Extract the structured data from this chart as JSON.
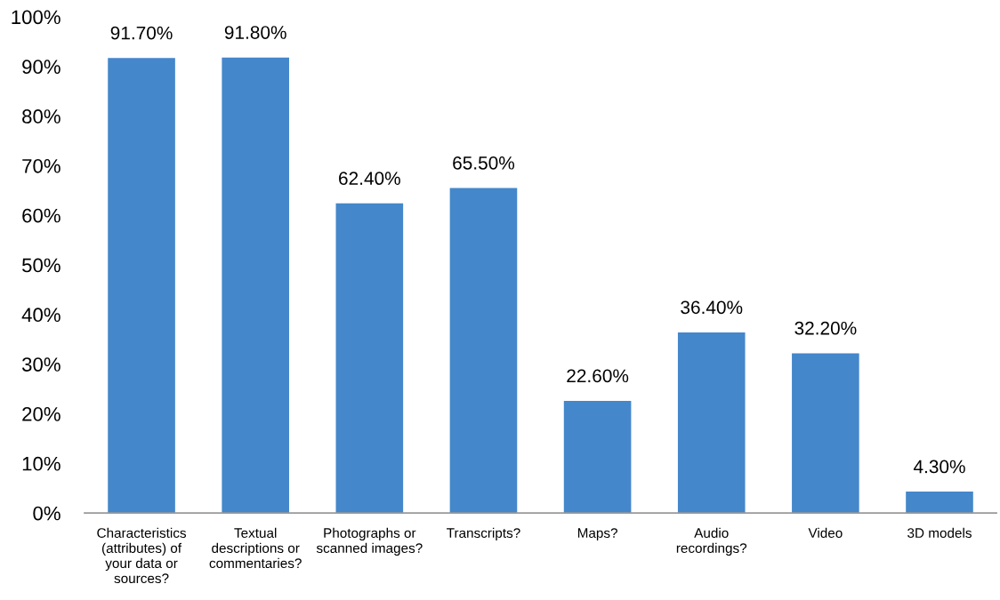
{
  "chart_data": {
    "type": "bar",
    "categories": [
      "Characteristics\n(attributes) of\nyour data or\nsources?",
      "Textual\ndescriptions or\ncommentaries?",
      "Photographs or\nscanned images?",
      "Transcripts?",
      "Maps?",
      "Audio\nrecordings?",
      "Video",
      "3D models"
    ],
    "values": [
      91.7,
      91.8,
      62.4,
      65.5,
      22.6,
      36.4,
      32.2,
      4.3
    ],
    "value_labels": [
      "91.70%",
      "91.80%",
      "62.40%",
      "65.50%",
      "22.60%",
      "36.40%",
      "32.20%",
      "4.30%"
    ],
    "color": "#4487cb",
    "ylim": [
      0,
      100
    ],
    "yticks": [
      {
        "value": 0,
        "label": "0%"
      },
      {
        "value": 10,
        "label": "10%"
      },
      {
        "value": 20,
        "label": "20%"
      },
      {
        "value": 30,
        "label": "30%"
      },
      {
        "value": 40,
        "label": "40%"
      },
      {
        "value": 50,
        "label": "50%"
      },
      {
        "value": 60,
        "label": "60%"
      },
      {
        "value": 70,
        "label": "70%"
      },
      {
        "value": 80,
        "label": "80%"
      },
      {
        "value": 90,
        "label": "90%"
      },
      {
        "value": 100,
        "label": "100%"
      }
    ]
  }
}
